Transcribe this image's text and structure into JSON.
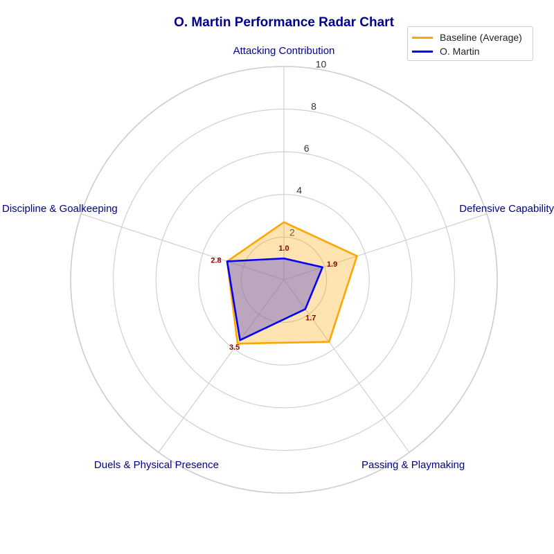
{
  "chart_data": {
    "type": "radar",
    "title": "O. Martin Performance Radar Chart",
    "categories": [
      "Attacking Contribution",
      "Defensive Capability",
      "Passing & Playmaking",
      "Duels & Physical Presence",
      "Discipline & Goalkeeping"
    ],
    "radial_ticks": [
      "2",
      "4",
      "6",
      "8",
      "10"
    ],
    "radial_tick_values": [
      2,
      4,
      6,
      8,
      10
    ],
    "rlim": [
      0,
      10
    ],
    "grid": true,
    "legend_position": "top-right",
    "series": [
      {
        "name": "Baseline (Average)",
        "values": [
          2.7,
          3.6,
          3.6,
          3.7,
          2.8
        ],
        "color": "#FFA500",
        "fill": "#FFA500"
      },
      {
        "name": "O. Martin",
        "values": [
          1.0,
          1.9,
          1.7,
          3.5,
          2.8
        ],
        "color": "#0000FF",
        "fill": "#6A5ACD"
      }
    ],
    "data_labels": [
      "1.0",
      "1.9",
      "1.7",
      "3.5",
      "2.8"
    ],
    "colors": {
      "title": "#00008B",
      "category_label": "#00008B",
      "data_label": "#8B0000",
      "grid": "#CCCCCC"
    }
  }
}
